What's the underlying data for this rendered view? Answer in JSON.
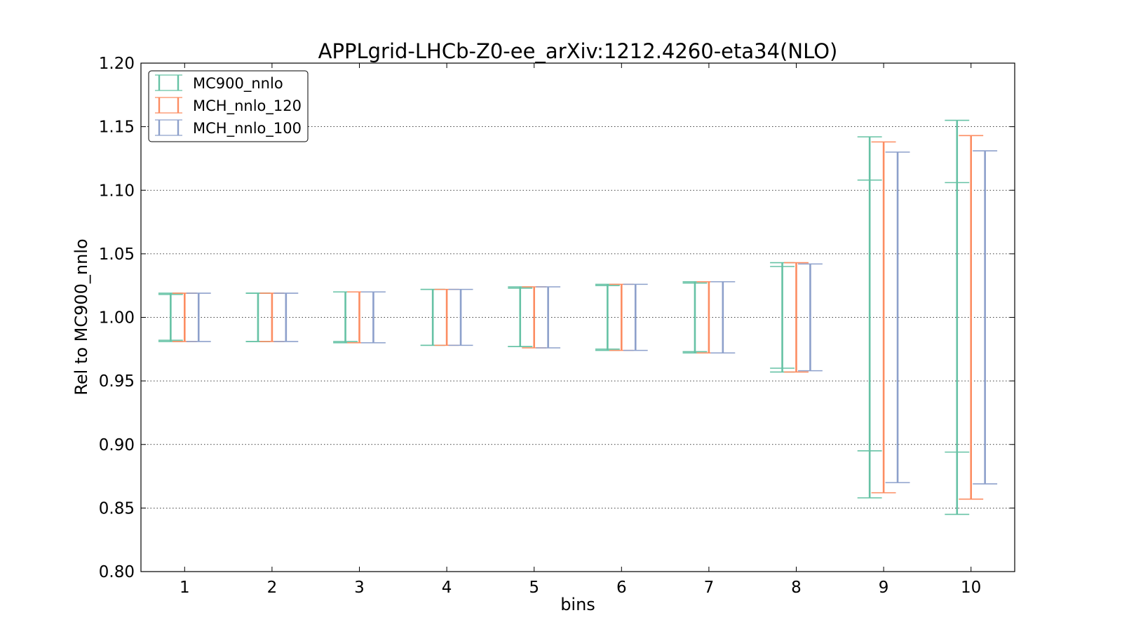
{
  "chart_data": {
    "type": "errorbar",
    "title": "APPLgrid-LHCb-Z0-ee_arXiv:1212.4260-eta34(NLO)",
    "xlabel": "bins",
    "ylabel": "Rel to MC900_nnlo",
    "xlim": [
      0.5,
      10.5
    ],
    "ylim": [
      0.8,
      1.2
    ],
    "xticks": [
      "1",
      "2",
      "3",
      "4",
      "5",
      "6",
      "7",
      "8",
      "9",
      "10"
    ],
    "yticks": [
      "0.80",
      "0.85",
      "0.90",
      "0.95",
      "1.00",
      "1.05",
      "1.10",
      "1.15",
      "1.20"
    ],
    "grid": "y-dotted",
    "legend_position": "top-left",
    "bins": [
      1,
      2,
      3,
      4,
      5,
      6,
      7,
      8,
      9,
      10
    ],
    "series": [
      {
        "name": "MC900_nnlo",
        "color": "#66c2a5",
        "outer_low": [
          0.981,
          0.981,
          0.98,
          0.978,
          0.977,
          0.974,
          0.972,
          0.957,
          0.858,
          0.845
        ],
        "outer_high": [
          1.019,
          1.019,
          1.02,
          1.022,
          1.024,
          1.026,
          1.028,
          1.043,
          1.142,
          1.155
        ],
        "inner_low": [
          0.982,
          0.981,
          0.981,
          0.978,
          0.977,
          0.975,
          0.973,
          0.96,
          0.895,
          0.894
        ],
        "inner_high": [
          1.018,
          1.019,
          1.02,
          1.022,
          1.023,
          1.025,
          1.027,
          1.04,
          1.108,
          1.106
        ]
      },
      {
        "name": "MCH_nnlo_120",
        "color": "#fc8d62",
        "outer_low": [
          0.981,
          0.981,
          0.98,
          0.978,
          0.976,
          0.974,
          0.972,
          0.957,
          0.862,
          0.857
        ],
        "outer_high": [
          1.019,
          1.019,
          1.02,
          1.022,
          1.024,
          1.026,
          1.028,
          1.043,
          1.138,
          1.143
        ]
      },
      {
        "name": "MCH_nnlo_100",
        "color": "#8da0cb",
        "outer_low": [
          0.981,
          0.981,
          0.98,
          0.978,
          0.976,
          0.974,
          0.972,
          0.958,
          0.87,
          0.869
        ],
        "outer_high": [
          1.019,
          1.019,
          1.02,
          1.022,
          1.024,
          1.026,
          1.028,
          1.042,
          1.13,
          1.131
        ]
      }
    ]
  }
}
